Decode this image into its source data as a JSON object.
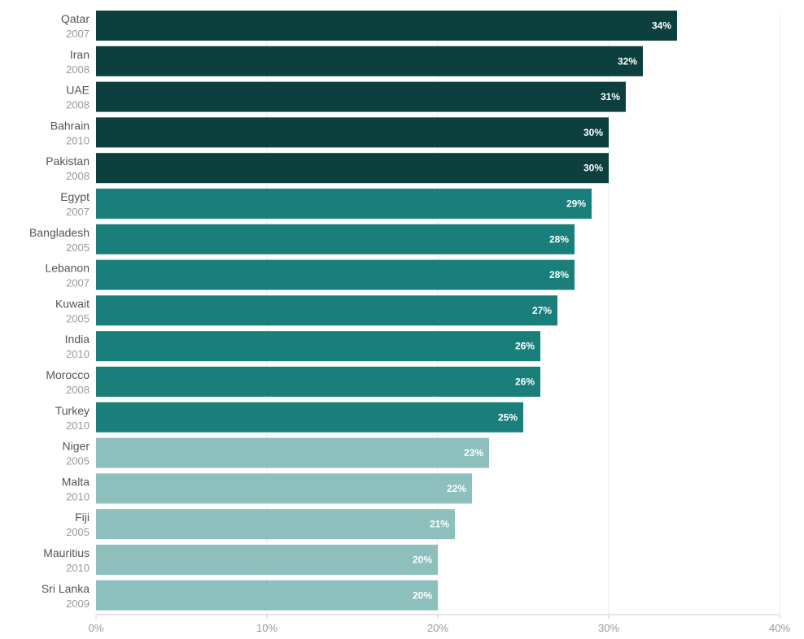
{
  "chart_data": {
    "type": "bar",
    "orientation": "horizontal",
    "title": "",
    "xlabel": "",
    "ylabel": "",
    "xlim": [
      0,
      40
    ],
    "ticks": [
      "0%",
      "10%",
      "20%",
      "30%",
      "40%"
    ],
    "tick_values": [
      0,
      10,
      20,
      30,
      40
    ],
    "grid": true,
    "legend": "none",
    "categories": [
      "Qatar",
      "Iran",
      "UAE",
      "Bahrain",
      "Pakistan",
      "Egypt",
      "Bangladesh",
      "Lebanon",
      "Kuwait",
      "India",
      "Morocco",
      "Turkey",
      "Niger",
      "Malta",
      "Fiji",
      "Mauritius",
      "Sri Lanka"
    ],
    "years": [
      "2007",
      "2008",
      "2008",
      "2010",
      "2008",
      "2007",
      "2005",
      "2007",
      "2005",
      "2010",
      "2008",
      "2010",
      "2005",
      "2010",
      "2005",
      "2010",
      "2009"
    ],
    "values": [
      34,
      32,
      31,
      30,
      30,
      29,
      28,
      28,
      27,
      26,
      26,
      25,
      23,
      22,
      21,
      20,
      20
    ],
    "value_labels": [
      "34%",
      "32%",
      "31%",
      "30%",
      "30%",
      "29%",
      "28%",
      "28%",
      "27%",
      "26%",
      "26%",
      "25%",
      "23%",
      "22%",
      "21%",
      "20%",
      "20%"
    ],
    "bar_tiers": [
      0,
      0,
      0,
      0,
      0,
      1,
      1,
      1,
      1,
      1,
      1,
      1,
      2,
      2,
      2,
      2,
      2
    ],
    "tier_colors": [
      "#0c3f3e",
      "#1a7f7b",
      "#8dbfbd"
    ]
  }
}
